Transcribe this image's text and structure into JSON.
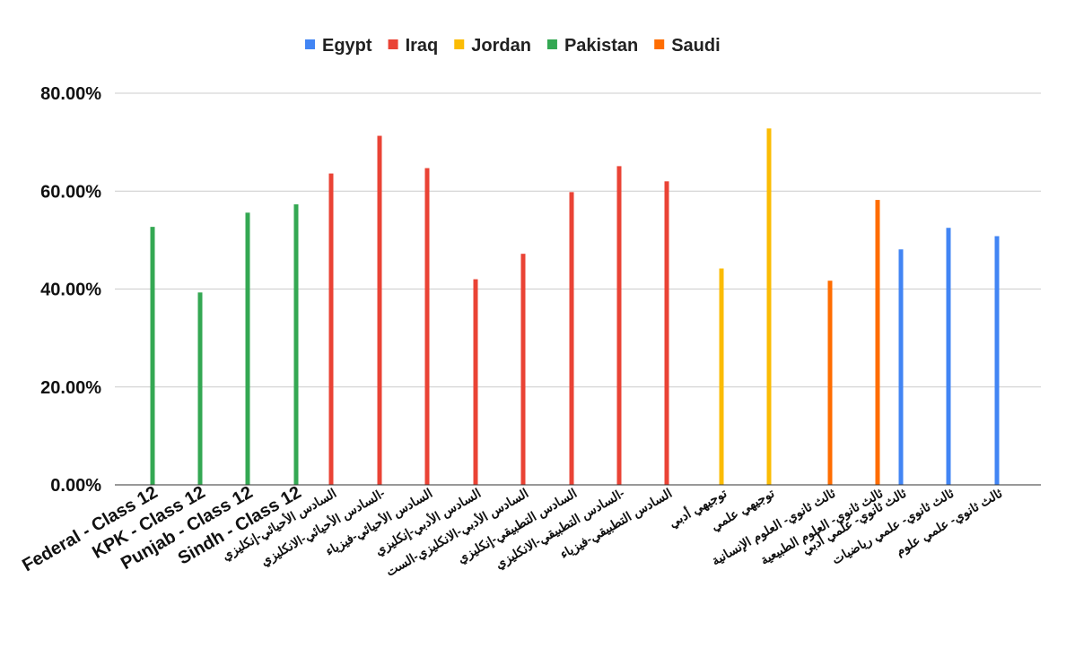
{
  "chart_data": {
    "type": "bar",
    "legend_position": "top",
    "grid": true,
    "ylim": [
      0,
      80
    ],
    "yticks": [
      "0.00%",
      "20.00%",
      "40.00%",
      "60.00%",
      "80.00%"
    ],
    "series": [
      {
        "name": "Egypt",
        "color": "#4285F4"
      },
      {
        "name": "Iraq",
        "color": "#EA4335"
      },
      {
        "name": "Jordan",
        "color": "#FBBC04"
      },
      {
        "name": "Pakistan",
        "color": "#34A853"
      },
      {
        "name": "Saudi",
        "color": "#FF6D01"
      }
    ],
    "bars": [
      {
        "category": "Federal - Class 12",
        "series": "Pakistan",
        "value": 52.7
      },
      {
        "category": "KPK - Class 12",
        "series": "Pakistan",
        "value": 39.3
      },
      {
        "category": "Punjab - Class 12",
        "series": "Pakistan",
        "value": 55.6
      },
      {
        "category": "Sindh - Class 12",
        "series": "Pakistan",
        "value": 57.3
      },
      {
        "category": "السادس الأحيائي-إنكليزي",
        "series": "Iraq",
        "value": 63.6
      },
      {
        "category": "السادس الأحيائي-الانكليزي-",
        "series": "Iraq",
        "value": 71.3
      },
      {
        "category": "السادس الأحيائي-فيزياء",
        "series": "Iraq",
        "value": 64.7
      },
      {
        "category": "السادس الأدبي-إنكليزي",
        "series": "Iraq",
        "value": 42.0
      },
      {
        "category": "السادس الأدبي-الانكليزي-الست",
        "series": "Iraq",
        "value": 47.2
      },
      {
        "category": "السادس التطبيقي-إنكليزي",
        "series": "Iraq",
        "value": 59.8
      },
      {
        "category": "السادس التطبيقي-الانكليزي-",
        "series": "Iraq",
        "value": 65.1
      },
      {
        "category": "السادس التطبيقي-فيزياء",
        "series": "Iraq",
        "value": 62.0
      },
      {
        "category": "توجيهي أدبي",
        "series": "Jordan",
        "value": 44.2
      },
      {
        "category": "توجيهي علمي",
        "series": "Jordan",
        "value": 72.8
      },
      {
        "category": "ثالث ثانوي- العلوم الإنسانية",
        "series": "Saudi",
        "value": 41.7
      },
      {
        "category": "ثالث ثانوي- العلوم الطبيعية",
        "series": "Saudi",
        "value": 58.2
      },
      {
        "category": "ثالث ثانوي- علمي أدبي",
        "series": "Egypt",
        "value": 48.1
      },
      {
        "category": "ثالث ثانوي- علمي رياضيات",
        "series": "Egypt",
        "value": 52.5
      },
      {
        "category": "ثالث ثانوي- علمي علوم",
        "series": "Egypt",
        "value": 50.8
      }
    ]
  }
}
